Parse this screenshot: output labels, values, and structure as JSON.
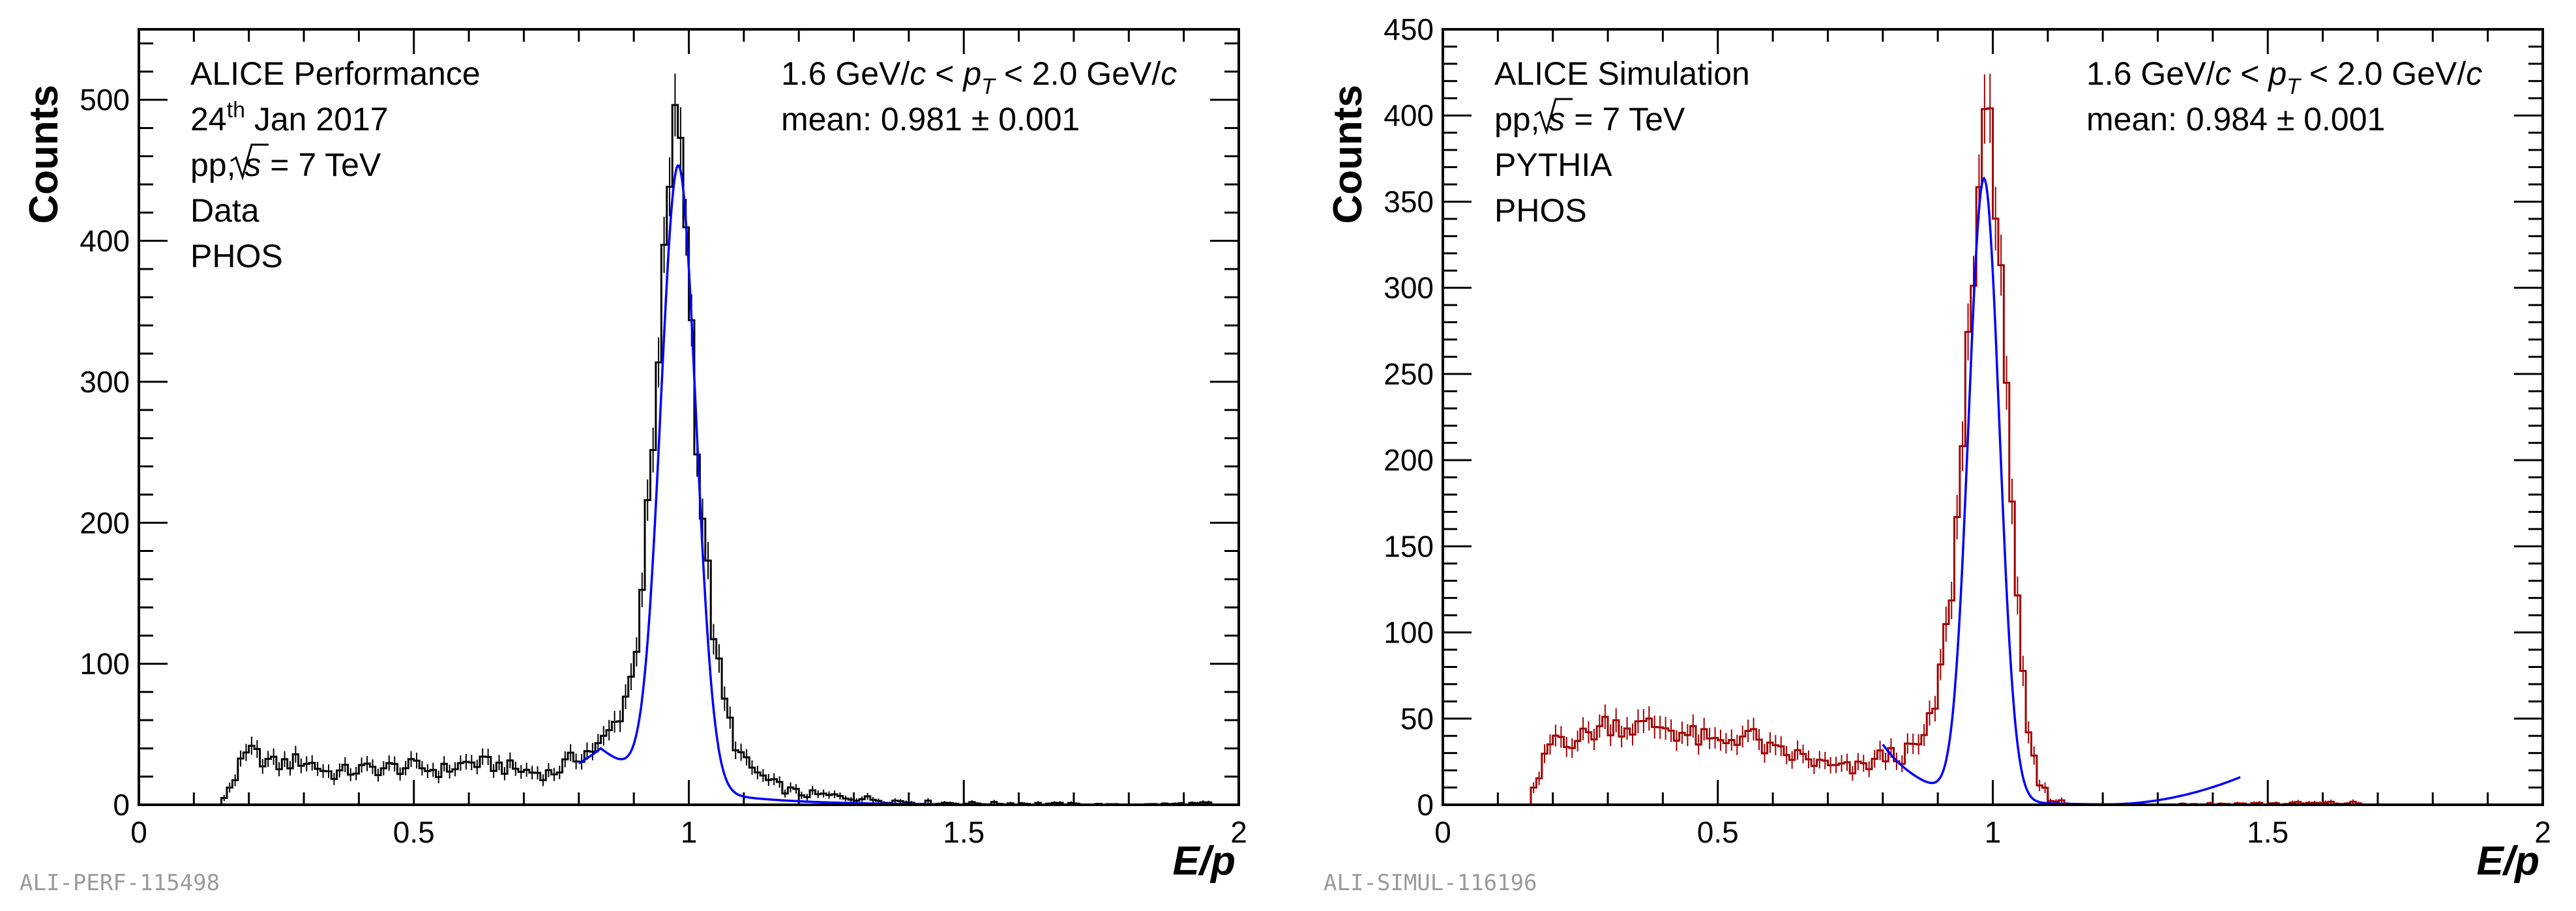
{
  "colors": {
    "fit": "#0000ff",
    "data_hist": "#000000",
    "sim_hist": "#a00000",
    "id_label": "#9a9a9a"
  },
  "chart_data": [
    {
      "type": "histogram",
      "xlabel": "E/p",
      "ylabel": "Counts",
      "xlim": [
        0,
        2
      ],
      "ylim": [
        0,
        550
      ],
      "x_ticks": [
        "0",
        "0.5",
        "1",
        "1.5",
        "2"
      ],
      "y_ticks": [
        "0",
        "100",
        "200",
        "300",
        "400",
        "500"
      ],
      "y_tick_values": [
        0,
        100,
        200,
        300,
        400,
        500
      ],
      "annotations_left": [
        "ALICE Performance",
        "24",
        "th",
        " Jan 2017",
        "pp, ",
        "s",
        " = 7 TeV",
        "Data",
        "PHOS"
      ],
      "annotations_right": [
        "1.6 GeV/",
        "c",
        " < ",
        "p",
        "T",
        " < 2.0 GeV/",
        "c",
        "mean: 0.981",
        " ± ",
        "0.001"
      ],
      "figure_id": "ALI-PERF-115498",
      "bin_width": 0.01,
      "points": [
        [
          0.15,
          2
        ],
        [
          0.2,
          38
        ],
        [
          0.25,
          28
        ],
        [
          0.3,
          32
        ],
        [
          0.35,
          22
        ],
        [
          0.4,
          25
        ],
        [
          0.45,
          26
        ],
        [
          0.5,
          27
        ],
        [
          0.55,
          24
        ],
        [
          0.6,
          30
        ],
        [
          0.65,
          28
        ],
        [
          0.7,
          24
        ],
        [
          0.75,
          22
        ],
        [
          0.8,
          35
        ],
        [
          0.84,
          42
        ],
        [
          0.87,
          60
        ],
        [
          0.9,
          95
        ],
        [
          0.92,
          180
        ],
        [
          0.94,
          270
        ],
        [
          0.96,
          420
        ],
        [
          0.97,
          470
        ],
        [
          0.98,
          490
        ],
        [
          0.99,
          460
        ],
        [
          1.0,
          380
        ],
        [
          1.01,
          300
        ],
        [
          1.02,
          230
        ],
        [
          1.04,
          140
        ],
        [
          1.06,
          80
        ],
        [
          1.08,
          50
        ],
        [
          1.1,
          30
        ],
        [
          1.15,
          15
        ],
        [
          1.2,
          8
        ],
        [
          1.3,
          5
        ],
        [
          1.4,
          2
        ],
        [
          1.5,
          1
        ],
        [
          1.6,
          1
        ],
        [
          1.8,
          0
        ],
        [
          1.95,
          1
        ]
      ],
      "fit": {
        "type": "gaussian_plus_background",
        "mean": 0.981,
        "sigma": 0.032,
        "amplitude": 440,
        "bg_height": 40,
        "bg_center": 0.84,
        "bg_decay": 0.13,
        "x_range": [
          0.8,
          1.45
        ]
      }
    },
    {
      "type": "histogram",
      "xlabel": "E/p",
      "ylabel": "Counts",
      "xlim": [
        0,
        2
      ],
      "ylim": [
        0,
        450
      ],
      "x_ticks": [
        "0",
        "0.5",
        "1",
        "1.5",
        "2"
      ],
      "y_ticks": [
        "0",
        "50",
        "100",
        "150",
        "200",
        "250",
        "300",
        "350",
        "400",
        "450"
      ],
      "y_tick_values": [
        0,
        50,
        100,
        150,
        200,
        250,
        300,
        350,
        400,
        450
      ],
      "annotations_left": [
        "ALICE Simulation",
        "pp, ",
        "s",
        " = 7 TeV",
        "PYTHIA",
        "PHOS"
      ],
      "annotations_right": [
        "1.6 GeV/",
        "c",
        " < ",
        "p",
        "T",
        " < 2.0 GeV/",
        "c",
        "mean: 0.984",
        " ± ",
        "0.001"
      ],
      "figure_id": "ALI-SIMUL-116196",
      "bin_width": 0.01,
      "points": [
        [
          0.16,
          3
        ],
        [
          0.18,
          20
        ],
        [
          0.2,
          40
        ],
        [
          0.25,
          38
        ],
        [
          0.3,
          48
        ],
        [
          0.35,
          45
        ],
        [
          0.4,
          46
        ],
        [
          0.45,
          40
        ],
        [
          0.5,
          35
        ],
        [
          0.55,
          42
        ],
        [
          0.6,
          30
        ],
        [
          0.65,
          28
        ],
        [
          0.7,
          22
        ],
        [
          0.75,
          20
        ],
        [
          0.8,
          28
        ],
        [
          0.85,
          30
        ],
        [
          0.88,
          40
        ],
        [
          0.9,
          65
        ],
        [
          0.92,
          110
        ],
        [
          0.94,
          180
        ],
        [
          0.96,
          300
        ],
        [
          0.98,
          380
        ],
        [
          0.99,
          390
        ],
        [
          1.0,
          380
        ],
        [
          1.02,
          300
        ],
        [
          1.03,
          200
        ],
        [
          1.04,
          130
        ],
        [
          1.06,
          50
        ],
        [
          1.08,
          15
        ],
        [
          1.1,
          5
        ],
        [
          1.12,
          2
        ],
        [
          1.15,
          0
        ],
        [
          1.67,
          1
        ]
      ],
      "fit": {
        "type": "gaussian_plus_background",
        "mean": 0.984,
        "sigma": 0.028,
        "amplitude": 360,
        "bg_height": 35,
        "bg_center": 0.8,
        "bg_decay": 0.08,
        "x_range": [
          0.8,
          1.45
        ]
      }
    }
  ]
}
